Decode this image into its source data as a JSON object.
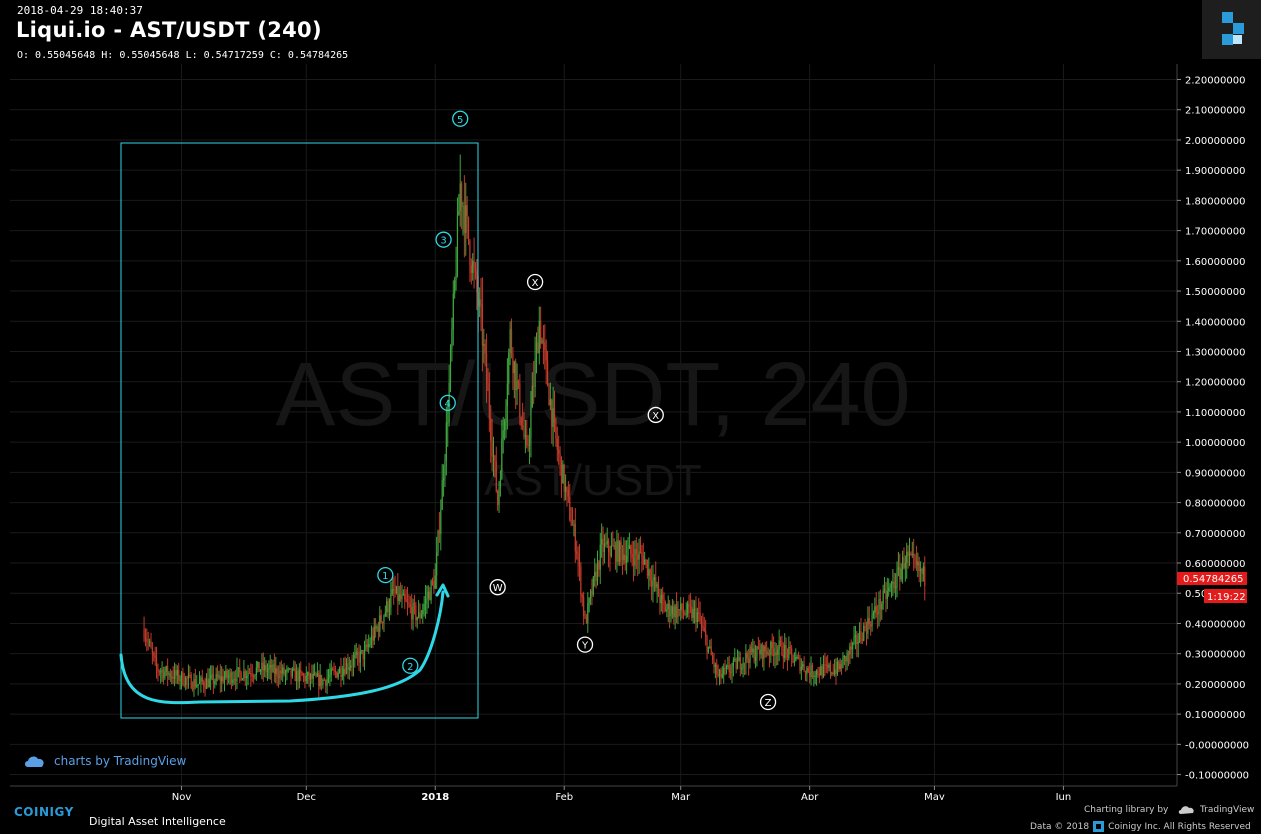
{
  "header": {
    "timestamp": "2018-04-29 18:40:37",
    "title": "Liqui.io - AST/USDT (240)",
    "ohlc": "O: 0.55045648 H: 0.55045648 L: 0.54717259 C: 0.54784265"
  },
  "watermark": {
    "main": "AST/USDT, 240",
    "sub": "AST/USDT"
  },
  "price_tags": {
    "last_price": "0.54784265",
    "countdown": "1:19:22",
    "color": "#e31b1b"
  },
  "tradingview_link": "charts by TradingView",
  "footer": {
    "brand": "COINIGY",
    "tagline": "Digital Asset Intelligence",
    "charting_library": "Charting library by",
    "tradingview": "TradingView",
    "data_copy": "Data © 2018",
    "rights": "Coinigy Inc. All Rights Reserved"
  },
  "chart_data": {
    "type": "candlestick",
    "x_tick_labels": [
      "Nov",
      "Dec",
      "2018",
      "Feb",
      "Mar",
      "Apr",
      "May",
      "Jun"
    ],
    "y_tick_labels": [
      "2.20000000",
      "2.10000000",
      "2.00000000",
      "1.90000000",
      "1.80000000",
      "1.70000000",
      "1.60000000",
      "1.50000000",
      "1.40000000",
      "1.30000000",
      "1.20000000",
      "1.10000000",
      "1.00000000",
      "0.90000000",
      "0.80000000",
      "0.70000000",
      "0.60000000",
      "0.50",
      "0.40000000",
      "0.30000000",
      "0.20000000",
      "0.10000000",
      "-0.00000000",
      "-0.10000000"
    ],
    "ylim": [
      -0.1,
      2.2
    ],
    "grid": true,
    "approx_price_path": [
      {
        "date": "2017-10-23",
        "price": 0.38
      },
      {
        "date": "2017-10-26",
        "price": 0.25
      },
      {
        "date": "2017-11-05",
        "price": 0.2
      },
      {
        "date": "2017-11-20",
        "price": 0.25
      },
      {
        "date": "2017-12-05",
        "price": 0.21
      },
      {
        "date": "2017-12-15",
        "price": 0.3
      },
      {
        "date": "2017-12-22",
        "price": 0.5
      },
      {
        "date": "2017-12-28",
        "price": 0.42
      },
      {
        "date": "2018-01-01",
        "price": 0.55
      },
      {
        "date": "2018-01-04",
        "price": 1.1
      },
      {
        "date": "2018-01-07",
        "price": 1.85
      },
      {
        "date": "2018-01-12",
        "price": 1.4
      },
      {
        "date": "2018-01-16",
        "price": 0.8
      },
      {
        "date": "2018-01-19",
        "price": 1.35
      },
      {
        "date": "2018-01-23",
        "price": 0.95
      },
      {
        "date": "2018-01-26",
        "price": 1.4
      },
      {
        "date": "2018-01-30",
        "price": 1.0
      },
      {
        "date": "2018-02-04",
        "price": 0.65
      },
      {
        "date": "2018-02-06",
        "price": 0.4
      },
      {
        "date": "2018-02-10",
        "price": 0.65
      },
      {
        "date": "2018-02-20",
        "price": 0.62
      },
      {
        "date": "2018-02-25",
        "price": 0.45
      },
      {
        "date": "2018-03-05",
        "price": 0.43
      },
      {
        "date": "2018-03-10",
        "price": 0.22
      },
      {
        "date": "2018-03-18",
        "price": 0.3
      },
      {
        "date": "2018-03-25",
        "price": 0.32
      },
      {
        "date": "2018-04-01",
        "price": 0.24
      },
      {
        "date": "2018-04-08",
        "price": 0.25
      },
      {
        "date": "2018-04-15",
        "price": 0.4
      },
      {
        "date": "2018-04-22",
        "price": 0.55
      },
      {
        "date": "2018-04-24",
        "price": 0.62
      },
      {
        "date": "2018-04-29",
        "price": 0.548
      }
    ],
    "annotations": [
      {
        "label": "1",
        "color": "#2fd8e6",
        "date": "2017-12-20",
        "price": 0.56
      },
      {
        "label": "2",
        "color": "#2fd8e6",
        "date": "2017-12-26",
        "price": 0.26
      },
      {
        "label": "3",
        "color": "#2fd8e6",
        "date": "2018-01-03",
        "price": 1.67
      },
      {
        "label": "4",
        "color": "#2fd8e6",
        "date": "2018-01-04",
        "price": 1.13
      },
      {
        "label": "5",
        "color": "#2fd8e6",
        "date": "2018-01-07",
        "price": 2.07
      },
      {
        "label": "W",
        "color": "#ffffff",
        "date": "2018-01-16",
        "price": 0.52
      },
      {
        "label": "X",
        "color": "#ffffff",
        "date": "2018-01-25",
        "price": 1.53
      },
      {
        "label": "Y",
        "color": "#ffffff",
        "date": "2018-02-06",
        "price": 0.33
      },
      {
        "label": "X",
        "color": "#ffffff",
        "date": "2018-02-23",
        "price": 1.09
      },
      {
        "label": "Z",
        "color": "#ffffff",
        "date": "2018-03-22",
        "price": 0.14
      }
    ]
  },
  "colors": {
    "up": "#3ea63e",
    "down": "#c43c2a",
    "annotation": "#2fd8e6",
    "grid": "#1a1a1a"
  }
}
